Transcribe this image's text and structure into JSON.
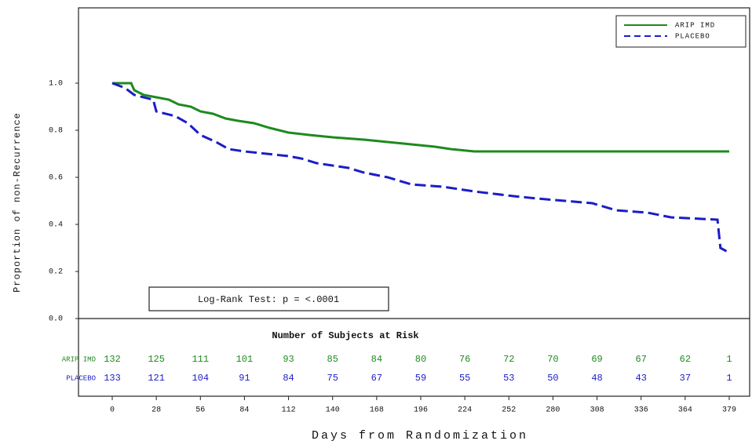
{
  "chart_data": {
    "type": "line",
    "x_label": "Days from Randomization",
    "y_label": "Proportion of non-Recurrence",
    "annotation": "Log-Rank Test: p = <.0001",
    "risk_table_title": "Number of Subjects at Risk",
    "legend": "top-right",
    "xlim": [
      0,
      379
    ],
    "xticks": [
      0,
      28,
      56,
      84,
      112,
      140,
      168,
      196,
      224,
      252,
      280,
      308,
      336,
      364,
      379
    ],
    "ylim": [
      0,
      1
    ],
    "yticks": [
      {
        "value": 0,
        "label": "0.0"
      },
      0.2,
      0.4,
      0.6,
      0.8,
      {
        "value": 1,
        "label": "1.0"
      }
    ],
    "series": [
      {
        "name": "ARIP IMD",
        "color": "#1e8a1e",
        "dash": false,
        "x": [
          0,
          12,
          14,
          20,
          28,
          36,
          42,
          50,
          56,
          64,
          72,
          80,
          90,
          100,
          112,
          125,
          140,
          160,
          175,
          190,
          205,
          215,
          230,
          379
        ],
        "values": [
          1.0,
          1.0,
          0.97,
          0.95,
          0.94,
          0.93,
          0.91,
          0.9,
          0.88,
          0.87,
          0.85,
          0.84,
          0.83,
          0.81,
          0.79,
          0.78,
          0.77,
          0.76,
          0.75,
          0.74,
          0.73,
          0.72,
          0.71,
          0.71
        ],
        "at_risk": [
          132,
          125,
          111,
          101,
          93,
          85,
          84,
          80,
          76,
          72,
          70,
          69,
          67,
          62,
          1
        ]
      },
      {
        "name": "PLACEBO",
        "color": "#1c1cc8",
        "dash": true,
        "x": [
          0,
          8,
          14,
          26,
          28,
          40,
          48,
          56,
          66,
          74,
          84,
          112,
          120,
          130,
          150,
          160,
          175,
          190,
          210,
          230,
          255,
          270,
          305,
          320,
          340,
          355,
          375,
          376,
          379
        ],
        "values": [
          1.0,
          0.98,
          0.95,
          0.93,
          0.88,
          0.86,
          0.83,
          0.78,
          0.75,
          0.72,
          0.71,
          0.69,
          0.68,
          0.66,
          0.64,
          0.62,
          0.6,
          0.57,
          0.56,
          0.54,
          0.52,
          0.51,
          0.49,
          0.46,
          0.45,
          0.43,
          0.42,
          0.3,
          0.28
        ],
        "at_risk": [
          133,
          121,
          104,
          91,
          84,
          75,
          67,
          59,
          55,
          53,
          50,
          48,
          43,
          37,
          1
        ]
      }
    ]
  }
}
